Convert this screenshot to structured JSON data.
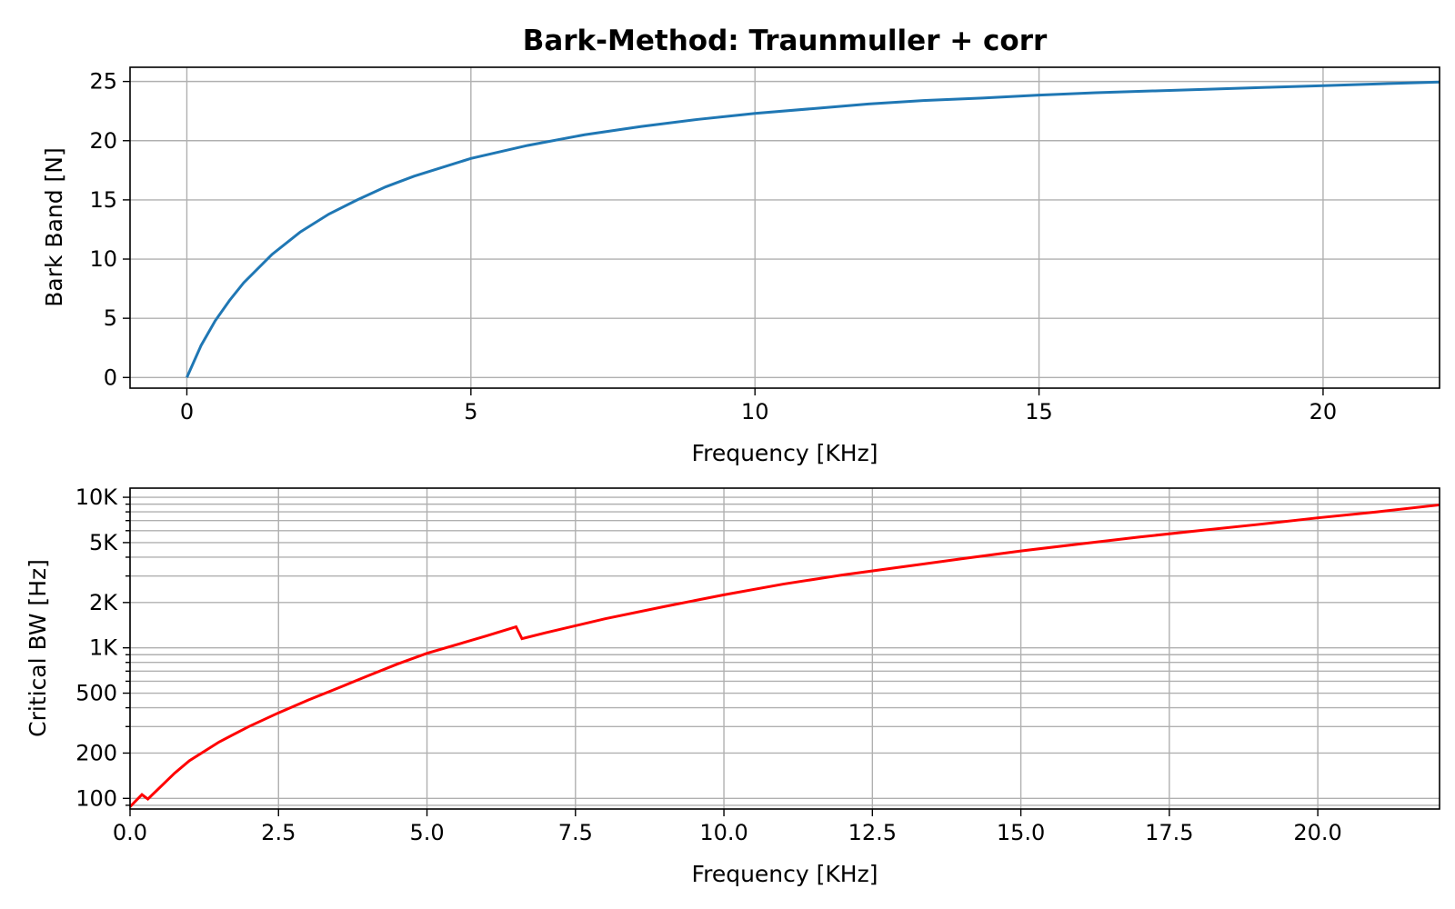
{
  "figure": {
    "title": "Bark-Method: Traunmuller + corr"
  },
  "chart_data": [
    {
      "type": "line",
      "title": "Bark-Method: Traunmuller + corr",
      "xlabel": "Frequency [KHz]",
      "ylabel": "Bark Band [N]",
      "xlim": [
        -1.0,
        22.05
      ],
      "ylim": [
        -0.9,
        26.2
      ],
      "xticks": [
        0,
        5,
        10,
        15,
        20
      ],
      "xtick_labels": [
        "0",
        "5",
        "10",
        "15",
        "20"
      ],
      "yticks": [
        0,
        5,
        10,
        15,
        20,
        25
      ],
      "ytick_labels": [
        "0",
        "5",
        "10",
        "15",
        "20",
        "25"
      ],
      "grid": true,
      "color": "#1f77b4",
      "series": [
        {
          "x": [
            0,
            0.25,
            0.5,
            0.75,
            1.0,
            1.5,
            2.0,
            2.5,
            3.0,
            3.5,
            4.0,
            5.0,
            6.0,
            7.0,
            8.0,
            9.0,
            10.0,
            11.0,
            12.0,
            13.0,
            14.0,
            15.0,
            16.0,
            17.0,
            18.0,
            19.0,
            20.0,
            21.0,
            22.05
          ],
          "y": [
            0,
            2.7,
            4.8,
            6.5,
            8.0,
            10.4,
            12.3,
            13.8,
            15.0,
            16.1,
            17.0,
            18.5,
            19.6,
            20.5,
            21.2,
            21.8,
            22.3,
            22.7,
            23.1,
            23.4,
            23.6,
            23.85,
            24.05,
            24.2,
            24.35,
            24.5,
            24.65,
            24.8,
            24.95
          ]
        }
      ]
    },
    {
      "type": "line",
      "xlabel": "Frequency [KHz]",
      "ylabel": "Critical BW [Hz]",
      "yscale": "log",
      "xlim": [
        0,
        22.05
      ],
      "ylim": [
        85,
        11500
      ],
      "xticks": [
        0,
        2.5,
        5,
        7.5,
        10,
        12.5,
        15,
        17.5,
        20
      ],
      "xtick_labels": [
        "0.0",
        "2.5",
        "5.0",
        "7.5",
        "10.0",
        "12.5",
        "15.0",
        "17.5",
        "20.0"
      ],
      "yticks": [
        100,
        200,
        500,
        1000,
        2000,
        5000,
        10000
      ],
      "ytick_labels": [
        "100",
        "200",
        "500",
        "1K",
        "2K",
        "5K",
        "10K"
      ],
      "grid": true,
      "color": "#ff0000",
      "series": [
        {
          "x": [
            0,
            0.2,
            0.3,
            0.5,
            0.75,
            1.0,
            1.5,
            2.0,
            2.5,
            3.0,
            3.5,
            4.0,
            4.5,
            5.0,
            5.5,
            6.0,
            6.5,
            6.6,
            7.0,
            8.0,
            9.0,
            10.0,
            11.0,
            12.0,
            13.0,
            14.0,
            15.0,
            16.0,
            17.0,
            18.0,
            19.0,
            20.0,
            21.0,
            22.05
          ],
          "y": [
            88,
            106,
            99,
            118,
            147,
            178,
            237,
            300,
            370,
            450,
            540,
            650,
            780,
            920,
            1050,
            1200,
            1380,
            1150,
            1260,
            1560,
            1880,
            2250,
            2650,
            3050,
            3450,
            3900,
            4400,
            4900,
            5450,
            6000,
            6600,
            7300,
            8000,
            8900
          ]
        }
      ]
    }
  ]
}
